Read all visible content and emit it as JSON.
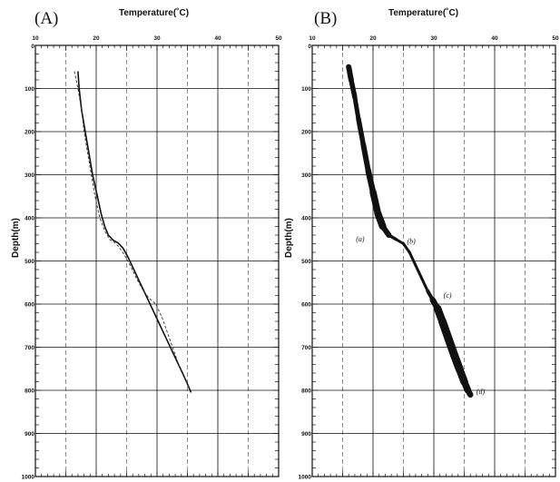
{
  "chart_data": [
    {
      "type": "line",
      "panel_label": "(A)",
      "xlabel": "Temperature(˚C)",
      "ylabel": "Depth(m)",
      "xlim": [
        10,
        50
      ],
      "ylim": [
        0,
        1000
      ],
      "y_inverted": true,
      "x_axis_position": "top",
      "x_ticks": [
        "10",
        "20",
        "30",
        "40",
        "50"
      ],
      "y_ticks": [
        "100",
        "200",
        "300",
        "400",
        "500",
        "600",
        "700",
        "800",
        "900",
        "1000"
      ],
      "grid": "solid every 100 m depth and every 10 ˚C; dashed at 5 ˚C intervals",
      "series": [
        {
          "style": "solid",
          "color": "#111111",
          "x": [
            17.0,
            17.2,
            17.6,
            18.2,
            18.8,
            19.4,
            20.2,
            20.8,
            21.4,
            22.0,
            22.8,
            23.6,
            24.4,
            25.2,
            26.2,
            27.2,
            28.2,
            29.2,
            30.2,
            31.2,
            32.2,
            33.2,
            34.2,
            35.0,
            35.6
          ],
          "y": [
            60,
            100,
            150,
            200,
            250,
            300,
            350,
            390,
            420,
            440,
            452,
            458,
            470,
            490,
            520,
            550,
            580,
            610,
            640,
            670,
            700,
            730,
            760,
            785,
            805
          ]
        },
        {
          "style": "dashed",
          "color": "#333333",
          "x": [
            16.4,
            17.0,
            17.6,
            18.0,
            18.6,
            19.2,
            19.8,
            20.6,
            21.4,
            22.2,
            22.8,
            23.6,
            24.6,
            25.6,
            26.6,
            27.6,
            28.6,
            29.8,
            30.8,
            31.8,
            32.8,
            33.8,
            34.8,
            35.4
          ],
          "y": [
            60,
            100,
            150,
            200,
            250,
            300,
            350,
            400,
            430,
            450,
            455,
            465,
            485,
            510,
            540,
            565,
            585,
            600,
            630,
            670,
            710,
            750,
            780,
            800
          ]
        }
      ]
    },
    {
      "type": "line",
      "panel_label": "(B)",
      "xlabel": "Temperature(˚C)",
      "ylabel": "Depth(m)",
      "xlim": [
        10,
        50
      ],
      "ylim": [
        0,
        1000
      ],
      "y_inverted": true,
      "x_axis_position": "top",
      "x_ticks": [
        "10",
        "20",
        "30",
        "40",
        "50"
      ],
      "y_ticks": [
        "100",
        "200",
        "300",
        "400",
        "500",
        "600",
        "700",
        "800",
        "900",
        "1000"
      ],
      "grid": "solid every 100 m depth and every 10 ˚C; dashed at 5 ˚C intervals",
      "series": [
        {
          "style": "thick band (overlapping profiles)",
          "color": "#111111",
          "x": [
            16.0,
            16.4,
            17.0,
            17.6,
            18.4,
            19.2,
            20.0,
            20.8,
            21.6,
            22.6,
            23.8,
            25.0,
            26.0,
            27.0,
            28.0,
            29.0,
            29.8,
            30.6,
            31.4,
            32.4,
            33.4,
            34.2,
            35.0,
            35.6,
            36.0
          ],
          "y": [
            50,
            80,
            120,
            170,
            230,
            290,
            340,
            390,
            420,
            440,
            450,
            460,
            480,
            510,
            540,
            570,
            590,
            610,
            640,
            680,
            720,
            750,
            780,
            800,
            810
          ],
          "band_width": [
            6,
            6,
            5,
            5,
            6,
            6,
            7,
            8,
            8,
            4,
            3,
            3,
            3,
            3,
            3,
            3,
            5,
            8,
            9,
            9,
            9,
            9,
            8,
            7,
            6
          ]
        }
      ],
      "annotations": [
        {
          "text": "(a)",
          "x": 17.2,
          "y": 455
        },
        {
          "text": "(b)",
          "x": 25.6,
          "y": 460
        },
        {
          "text": "(c)",
          "x": 31.6,
          "y": 585
        },
        {
          "text": "(d)",
          "x": 37.0,
          "y": 808
        }
      ]
    }
  ]
}
